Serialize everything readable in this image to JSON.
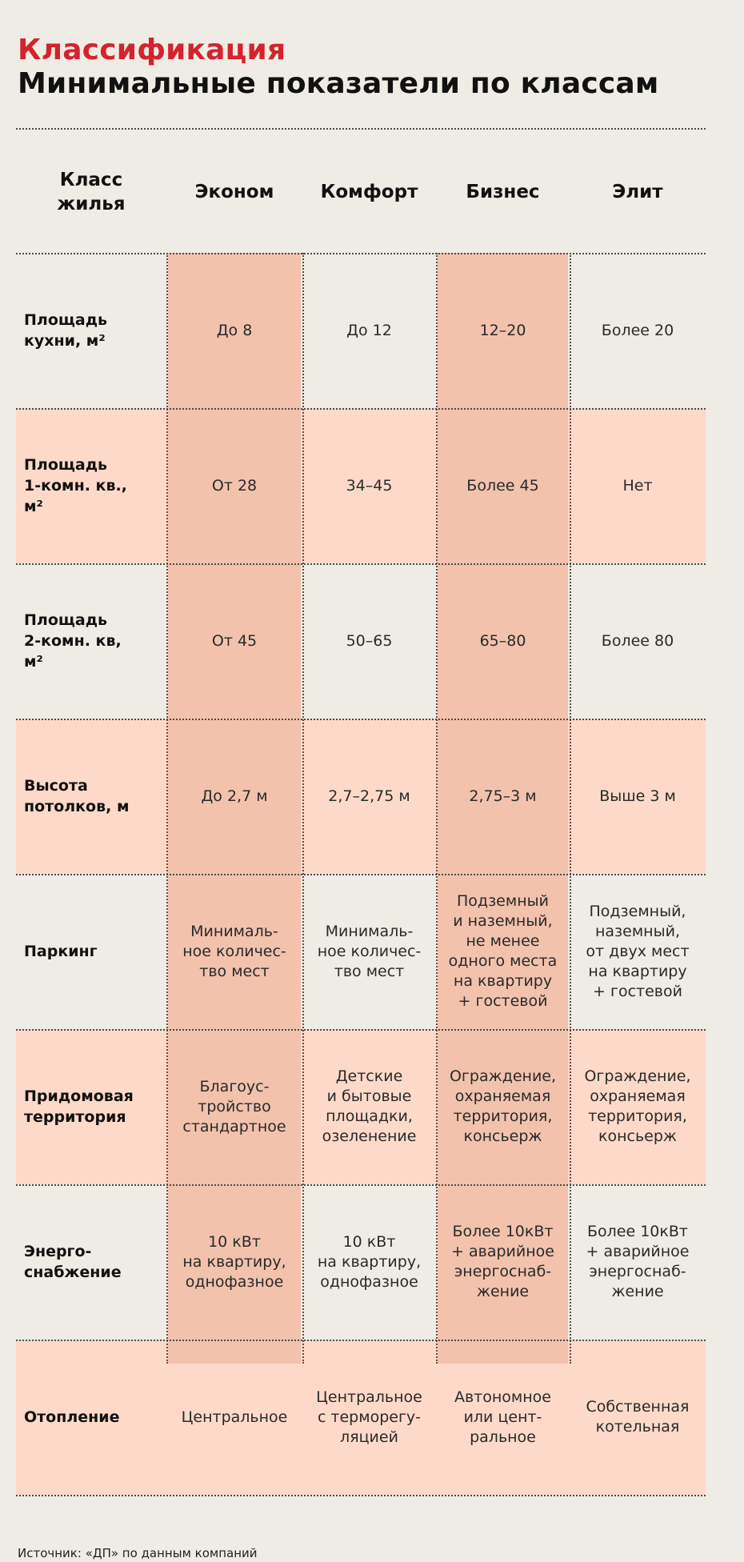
{
  "header": {
    "kicker": "Классификация",
    "title": "Минимальные показатели по классам"
  },
  "table": {
    "corner_label": "Класс\nжилья",
    "columns": [
      "Эконом",
      "Комфорт",
      "Бизнес",
      "Элит"
    ],
    "rows": [
      {
        "label": "Площадь\nкухни, м²",
        "values": [
          "До 8",
          "До 12",
          "12–20",
          "Более 20"
        ]
      },
      {
        "label": "Площадь\n1-комн. кв.,\nм²",
        "values": [
          "От 28",
          "34–45",
          "Более 45",
          "Нет"
        ]
      },
      {
        "label": "Площадь\n2-комн. кв,\nм²",
        "values": [
          "От 45",
          "50–65",
          "65–80",
          "Более 80"
        ]
      },
      {
        "label": "Высота\nпотолков, м",
        "values": [
          "До 2,7 м",
          "2,7–2,75 м",
          "2,75–3 м",
          "Выше 3 м"
        ]
      },
      {
        "label": "Паркинг",
        "values": [
          "Минималь-\nное количес-\nтво мест",
          "Минималь-\nное количес-\nтво мест",
          "Подземный\nи наземный,\nне менее\nодного места\nна квартиру\n+ гостевой",
          "Подземный,\nназемный,\nот двух мест\nна квартиру\n+ гостевой"
        ]
      },
      {
        "label": "Придомовая\nтерритория",
        "values": [
          "Благоус-\nтройство\nстандартное",
          "Детские\nи бытовые\nплощадки,\nозеленение",
          "Ограждение,\nохраняемая\nтерритория,\nконсьерж",
          "Ограждение,\nохраняемая\nтерритория,\nконсьерж"
        ]
      },
      {
        "label": "Энерго-\nснабжение",
        "values": [
          "10 кВт\nна квартиру,\nоднофазное",
          "10 кВт\nна квартиру,\nоднофазное",
          "Более 10кВт\n+ аварийное\nэнергоснаб-\nжение",
          "Более 10кВт\n+ аварийное\nэнергоснаб-\nжение"
        ]
      },
      {
        "label": "Отопление",
        "values": [
          "Центральное",
          "Центральное\nс терморегу-\nляцией",
          "Автономное\nили цент-\nральное",
          "Собственная\nкотельная"
        ]
      }
    ]
  },
  "footer": {
    "source": "Источник: «ДП» по данным компаний"
  },
  "colors": {
    "accent": "#d4232e",
    "shade_column": "#f2c2ad",
    "shade_row": "#fdd9c9",
    "background": "#eeece4"
  }
}
